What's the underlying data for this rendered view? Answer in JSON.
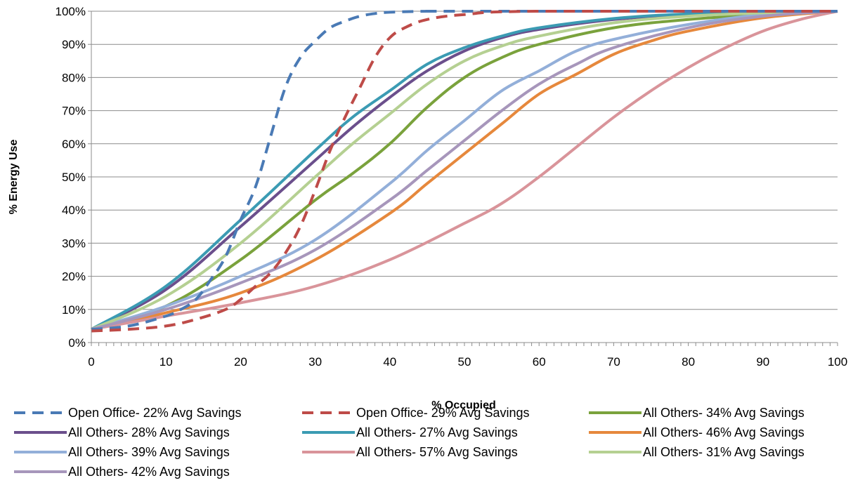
{
  "chart_data": {
    "type": "line",
    "title": "",
    "xlabel": "% Occupied",
    "ylabel": "% Energy Use",
    "xlim": [
      0,
      100
    ],
    "ylim": [
      0,
      100
    ],
    "x_ticks": [
      0,
      10,
      20,
      30,
      40,
      50,
      60,
      70,
      80,
      90,
      100
    ],
    "y_ticks": [
      0,
      10,
      20,
      30,
      40,
      50,
      60,
      70,
      80,
      90,
      100
    ],
    "x_tick_labels": [
      "0",
      "10",
      "20",
      "30",
      "40",
      "50",
      "60",
      "70",
      "80",
      "90",
      "100"
    ],
    "y_tick_labels": [
      "0%",
      "10%",
      "20%",
      "30%",
      "40%",
      "50%",
      "60%",
      "70%",
      "80%",
      "90%",
      "100%"
    ],
    "grid": "horizontal",
    "legend_position": "bottom",
    "series": [
      {
        "name": "Open Office- 22% Avg Savings",
        "color": "#4a7ab5",
        "dashed": true,
        "x": [
          0,
          5,
          10,
          12,
          14,
          16,
          18,
          20,
          22,
          24,
          26,
          28,
          30,
          32,
          34,
          36,
          38,
          40,
          45,
          50,
          100
        ],
        "y": [
          4,
          5,
          8,
          10,
          13,
          19,
          26,
          37,
          47,
          62,
          77,
          86,
          91,
          95,
          97,
          98.5,
          99.3,
          99.7,
          100,
          100,
          100
        ]
      },
      {
        "name": "Open Office- 29% Avg Savings",
        "color": "#be4b48",
        "dashed": true,
        "x": [
          0,
          5,
          10,
          14,
          18,
          20,
          22,
          24,
          26,
          28,
          30,
          32,
          34,
          36,
          38,
          40,
          42,
          45,
          50,
          60,
          100
        ],
        "y": [
          3.5,
          4,
          5,
          7,
          10,
          13,
          17,
          21,
          27,
          35,
          46,
          58,
          68,
          77,
          86,
          92,
          95,
          97.5,
          99,
          100,
          100
        ]
      },
      {
        "name": "All Others- 34% Avg Savings",
        "color": "#7aa23c",
        "dashed": false,
        "x": [
          0,
          10,
          20,
          30,
          35,
          40,
          45,
          50,
          55,
          60,
          70,
          80,
          90,
          100
        ],
        "y": [
          4,
          11,
          25,
          43,
          51,
          60,
          71,
          80,
          86,
          90,
          95,
          97.5,
          99,
          100
        ]
      },
      {
        "name": "All Others- 28% Avg Savings",
        "color": "#6b4f8c",
        "dashed": false,
        "x": [
          0,
          10,
          20,
          30,
          35,
          40,
          45,
          50,
          55,
          60,
          70,
          80,
          90,
          100
        ],
        "y": [
          4,
          16,
          35,
          55,
          65,
          74,
          82,
          88,
          92,
          94.5,
          97.5,
          99,
          99.7,
          100
        ]
      },
      {
        "name": "All Others- 27% Avg Savings",
        "color": "#3b9bb3",
        "dashed": false,
        "x": [
          0,
          10,
          20,
          30,
          35,
          40,
          45,
          50,
          55,
          60,
          70,
          80,
          90,
          100
        ],
        "y": [
          4,
          17,
          37,
          58,
          68,
          76,
          84,
          89,
          92.5,
          95,
          97.8,
          99.2,
          99.8,
          100
        ]
      },
      {
        "name": "All Others- 46% Avg Savings",
        "color": "#e6883c",
        "dashed": false,
        "x": [
          0,
          10,
          20,
          30,
          40,
          45,
          50,
          55,
          60,
          65,
          70,
          75,
          80,
          90,
          100
        ],
        "y": [
          4,
          9,
          15,
          25,
          39,
          48,
          57,
          66,
          75,
          81,
          87,
          91,
          94,
          98,
          100
        ]
      },
      {
        "name": "All Others- 39% Avg Savings",
        "color": "#93afd9",
        "dashed": false,
        "x": [
          0,
          10,
          20,
          30,
          40,
          45,
          50,
          55,
          60,
          65,
          70,
          80,
          90,
          100
        ],
        "y": [
          4,
          11,
          20,
          31,
          48,
          58,
          67,
          76,
          82,
          88,
          91.5,
          96,
          99,
          100
        ]
      },
      {
        "name": "All Others- 57% Avg Savings",
        "color": "#d9949a",
        "dashed": false,
        "x": [
          0,
          10,
          20,
          30,
          40,
          50,
          55,
          60,
          65,
          70,
          75,
          80,
          85,
          90,
          95,
          100
        ],
        "y": [
          4,
          8,
          12,
          17,
          25,
          36,
          42,
          50,
          59,
          68,
          76,
          83,
          89,
          94,
          97.5,
          100
        ]
      },
      {
        "name": "All Others- 31% Avg Savings",
        "color": "#b5d092",
        "dashed": false,
        "x": [
          0,
          10,
          20,
          30,
          35,
          40,
          45,
          50,
          55,
          60,
          70,
          80,
          90,
          100
        ],
        "y": [
          4,
          14,
          30,
          50,
          60,
          69,
          78,
          85,
          89.5,
          92.5,
          96.5,
          98.5,
          99.5,
          100
        ]
      },
      {
        "name": "All Others- 42% Avg Savings",
        "color": "#a796bb",
        "dashed": false,
        "x": [
          0,
          10,
          20,
          30,
          40,
          45,
          50,
          55,
          60,
          65,
          70,
          80,
          90,
          100
        ],
        "y": [
          4,
          10,
          18,
          28,
          43,
          52,
          61,
          70,
          78,
          84,
          89,
          95,
          98.5,
          100
        ]
      }
    ]
  }
}
